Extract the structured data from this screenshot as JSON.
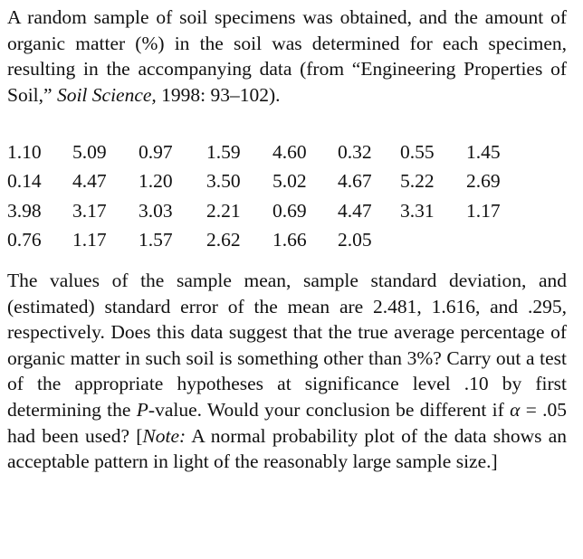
{
  "intro": {
    "text_a": "A random sample of soil specimens was obtained, and the amount of organic matter (%) in the soil was determined for each specimen, resulting in the accompanying data (from “Engineering Properties of Soil,” ",
    "journal": "Soil Science,",
    "text_b": " 1998: 93–102)."
  },
  "data_rows": [
    [
      "1.10",
      "5.09",
      "0.97",
      "1.59",
      "4.60",
      "0.32",
      "0.55",
      "1.45"
    ],
    [
      "0.14",
      "4.47",
      "1.20",
      "3.50",
      "5.02",
      "4.67",
      "5.22",
      "2.69"
    ],
    [
      "3.98",
      "3.17",
      "3.03",
      "2.21",
      "0.69",
      "4.47",
      "3.31",
      "1.17"
    ],
    [
      "0.76",
      "1.17",
      "1.57",
      "2.62",
      "1.66",
      "2.05"
    ]
  ],
  "question": {
    "text_a": "The values of the sample mean, sample standard deviation, and (estimated) standard error of the mean are 2.481, 1.616, and .295, respectively. Does this data suggest that the true average percentage of organic matter in such soil is something other than 3%? Carry out a test of the appropriate hypotheses at significance level .10 by first determining the ",
    "p_letter": "P",
    "text_b": "-value. Would your conclusion be different if ",
    "alpha": "α",
    "text_c": " = .05 had been used? [",
    "note_label": "Note:",
    "text_d": " A normal probability plot of the data shows an acceptable pattern in light of the reasonably large sample size.]"
  }
}
